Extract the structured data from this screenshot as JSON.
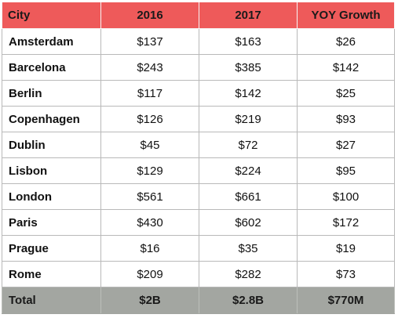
{
  "chart_data": {
    "type": "table",
    "columns": [
      "City",
      "2016",
      "2017",
      "YOY Growth"
    ],
    "rows": [
      [
        "Amsterdam",
        "$137",
        "$163",
        "$26"
      ],
      [
        "Barcelona",
        "$243",
        "$385",
        "$142"
      ],
      [
        "Berlin",
        "$117",
        "$142",
        "$25"
      ],
      [
        "Copenhagen",
        "$126",
        "$219",
        "$93"
      ],
      [
        "Dublin",
        "$45",
        "$72",
        "$27"
      ],
      [
        "Lisbon",
        "$129",
        "$224",
        "$95"
      ],
      [
        "London",
        "$561",
        "$661",
        "$100"
      ],
      [
        "Paris",
        "$430",
        "$602",
        "$172"
      ],
      [
        "Prague",
        "$16",
        "$35",
        "$19"
      ],
      [
        "Rome",
        "$209",
        "$282",
        "$73"
      ]
    ],
    "total": [
      "Total",
      "$2B",
      "$2.8B",
      "$770M"
    ],
    "colors": {
      "header_bg": "#ee5a5a",
      "total_bg": "#a3a6a1",
      "grid": "#b9b9b9"
    }
  }
}
